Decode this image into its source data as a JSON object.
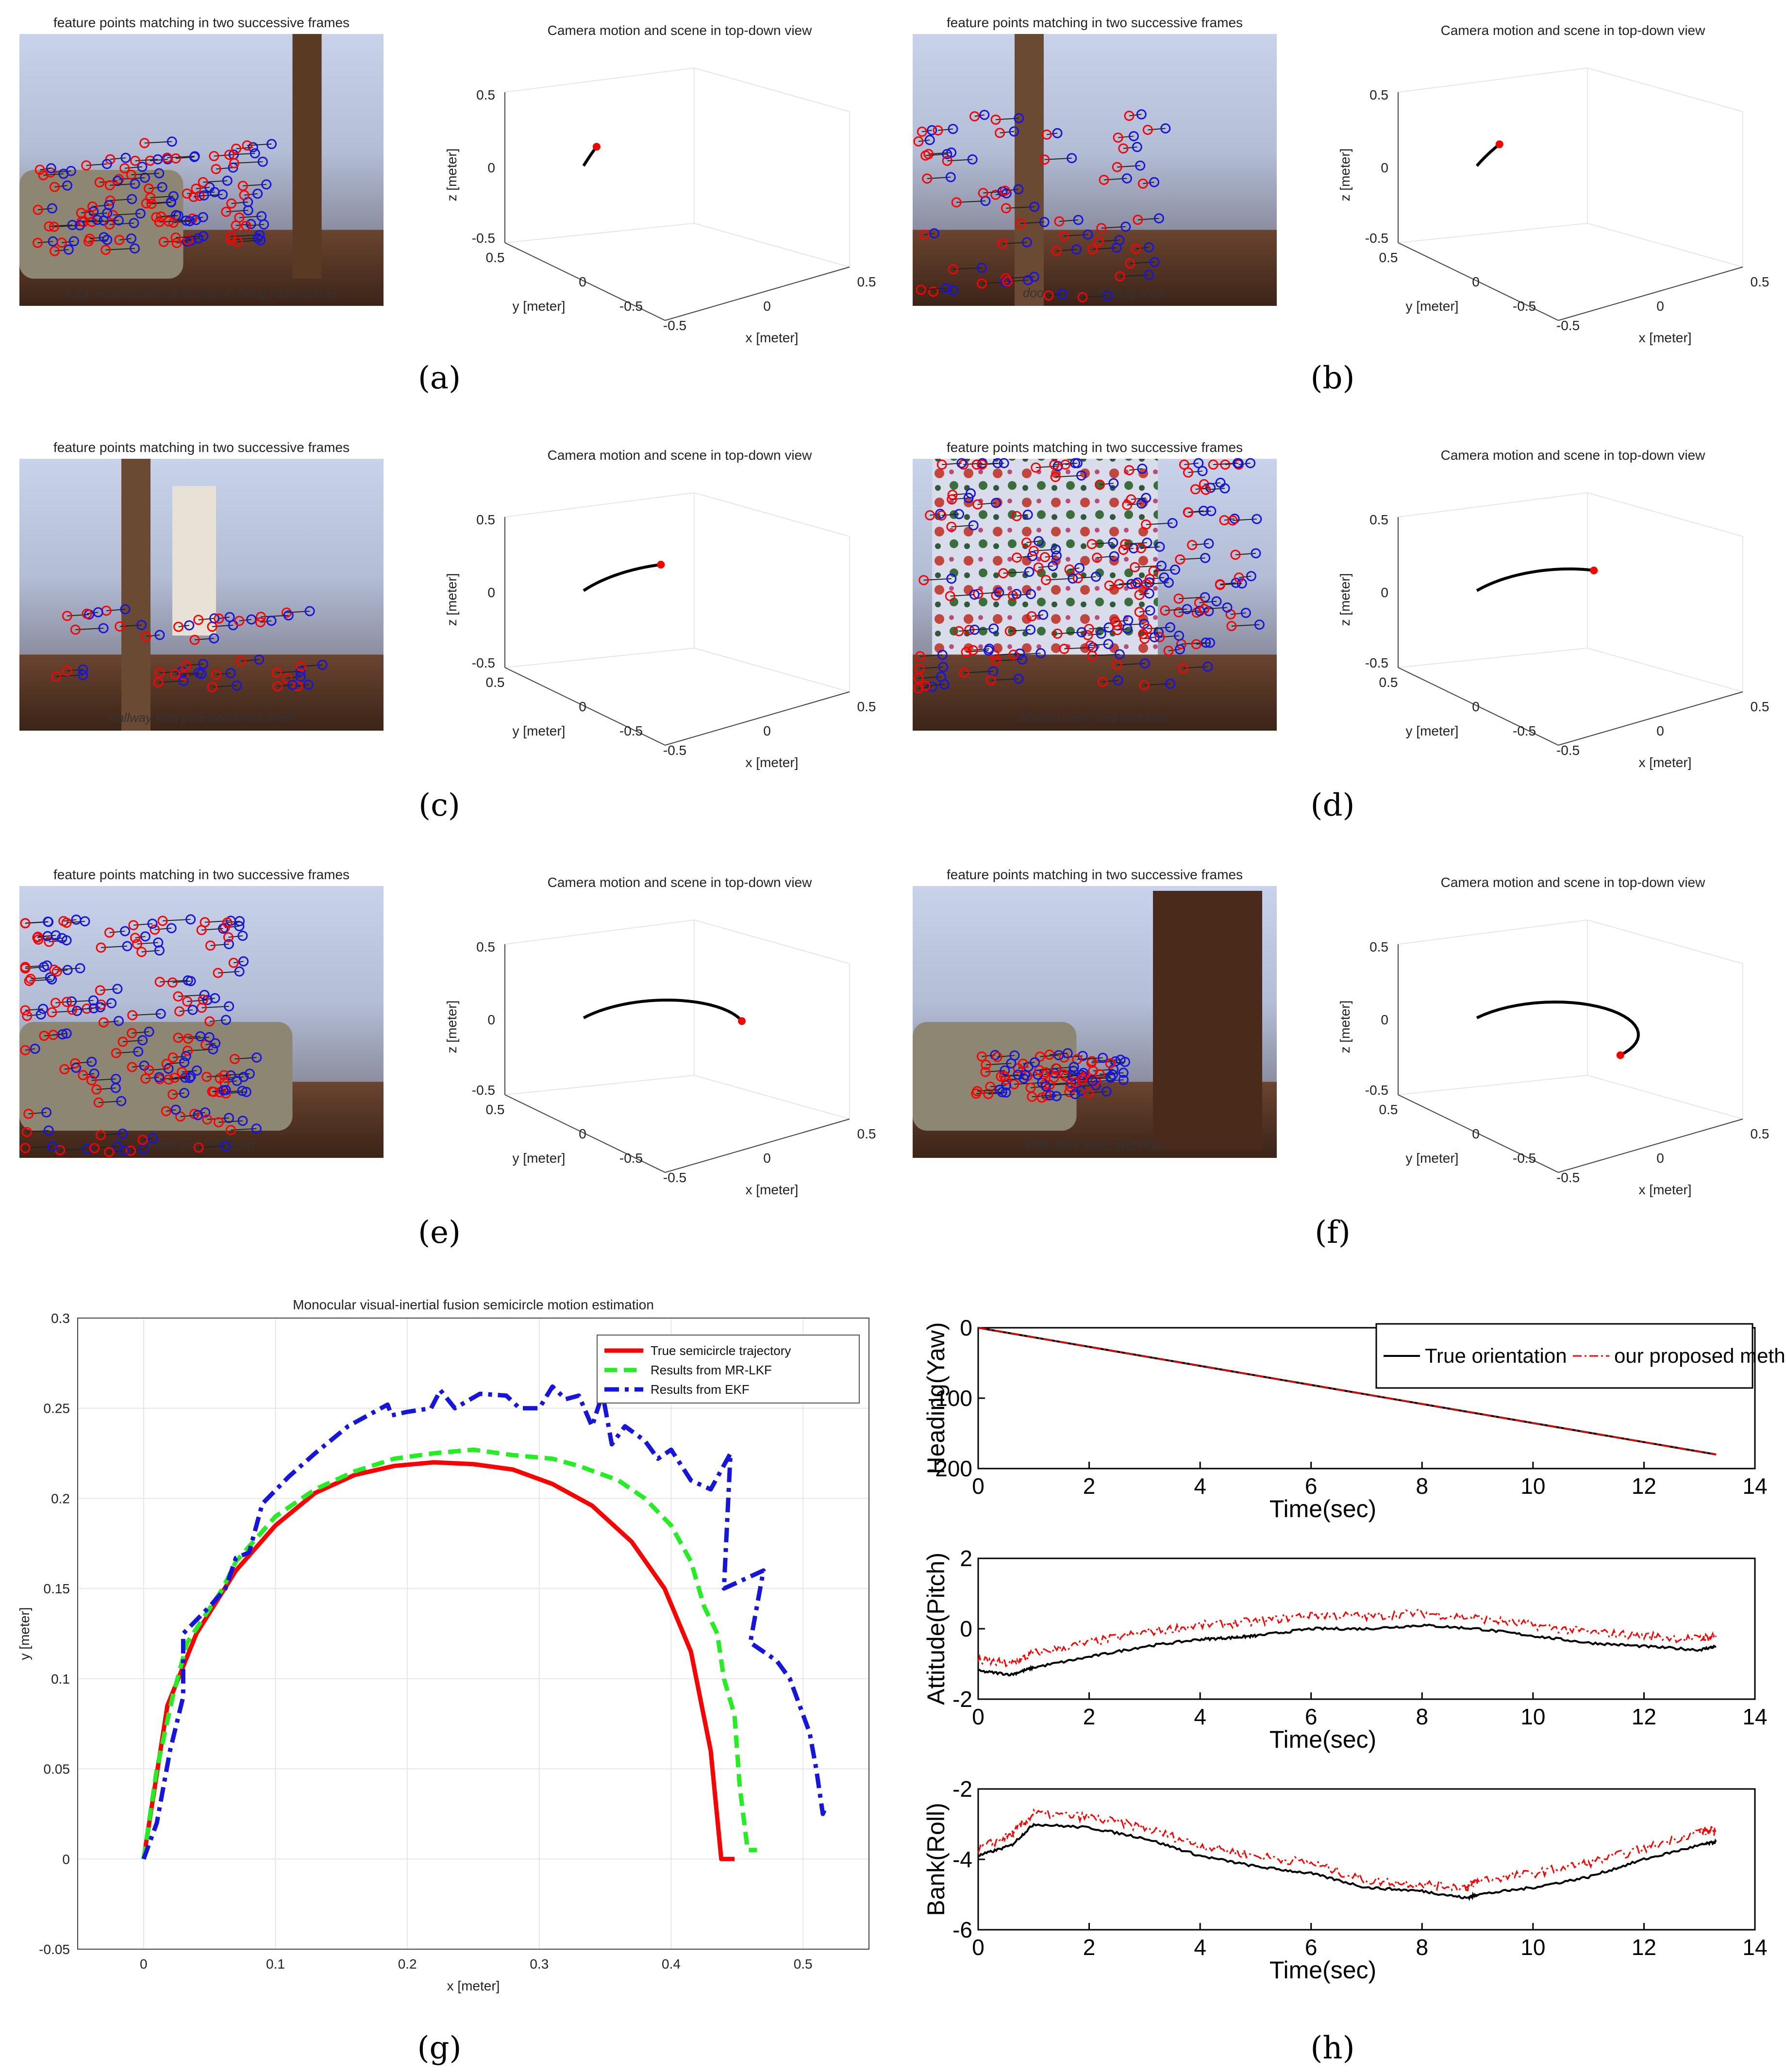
{
  "palette": {
    "red": "#ff0000",
    "green": "#22ee22",
    "blue": "#1515dd",
    "black": "#000000",
    "grid": "#e6e6e6",
    "wall": "#b9c4dc",
    "floor": "#5a3a28"
  },
  "panel_labels": [
    "(a)",
    "(b)",
    "(c)",
    "(d)",
    "(e)",
    "(f)",
    "(g)",
    "(h)"
  ],
  "frames": [
    {
      "photo_title": "feature points matching in two successive frames",
      "photo_scene": "sofa, wastebasket and chair in living room corner",
      "scene_title": "Camera motion and scene in top-down view",
      "arc_extent": 0.06
    },
    {
      "photo_title": "feature points matching in two successive frames",
      "photo_scene": "doorway and folding chair",
      "scene_title": "Camera motion and scene in top-down view",
      "arc_extent": 0.1
    },
    {
      "photo_title": "feature points matching in two successive frames",
      "photo_scene": "hallway with pole and small shelf",
      "scene_title": "Camera motion and scene in top-down view",
      "arc_extent": 0.3
    },
    {
      "photo_title": "feature points matching in two successive frames",
      "photo_scene": "floral curtain, bed and sofa",
      "scene_title": "Camera motion and scene in top-down view",
      "arc_extent": 0.45
    },
    {
      "photo_title": "feature points matching in two successive frames",
      "photo_scene": "floral sofa close-up",
      "scene_title": "Camera motion and scene in top-down view",
      "arc_extent": 0.7
    },
    {
      "photo_title": "feature points matching in two successive frames",
      "photo_scene": "sofa, floor lamp and door",
      "scene_title": "Camera motion and scene in top-down view",
      "arc_extent": 1.0
    }
  ],
  "scene3d": {
    "zlabel": "z [meter]",
    "ylabel": "y [meter]",
    "xlabel": "x [meter]",
    "z_ticks": [
      "0.5",
      "0",
      "-0.5"
    ],
    "y_ticks": [
      "0.5",
      "0",
      "-0.5"
    ],
    "x_ticks": [
      "-0.5",
      "0",
      "0.5"
    ]
  },
  "chart_data": [
    {
      "type": "line",
      "title": "Monocular visual-inertial fusion semicircle motion estimation",
      "xlabel": "x [meter]",
      "ylabel": "y [meter]",
      "xlim": [
        -0.05,
        0.55
      ],
      "ylim": [
        -0.05,
        0.3
      ],
      "x_ticks": [
        0,
        0.1,
        0.2,
        0.3,
        0.4,
        0.5
      ],
      "x_tick_labels": [
        "0",
        "0.1",
        "0.2",
        "0.3",
        "0.4",
        "0.5"
      ],
      "y_ticks": [
        -0.05,
        0,
        0.05,
        0.1,
        0.15,
        0.2,
        0.25,
        0.3
      ],
      "y_tick_labels": [
        "-0.05",
        "0",
        "0.05",
        "0.1",
        "0.15",
        "0.2",
        "0.25",
        "0.3"
      ],
      "grid": true,
      "legend_position": "top-right",
      "series": [
        {
          "name": "True semicircle trajectory",
          "color": "#ff0000",
          "style": "solid",
          "points": [
            [
              0,
              0
            ],
            [
              0.018,
              0.085
            ],
            [
              0.04,
              0.125
            ],
            [
              0.07,
              0.16
            ],
            [
              0.1,
              0.185
            ],
            [
              0.13,
              0.203
            ],
            [
              0.16,
              0.213
            ],
            [
              0.19,
              0.218
            ],
            [
              0.22,
              0.22
            ],
            [
              0.25,
              0.219
            ],
            [
              0.28,
              0.216
            ],
            [
              0.31,
              0.208
            ],
            [
              0.34,
              0.196
            ],
            [
              0.37,
              0.176
            ],
            [
              0.395,
              0.15
            ],
            [
              0.415,
              0.115
            ],
            [
              0.43,
              0.06
            ],
            [
              0.438,
              0
            ],
            [
              0.448,
              0
            ]
          ]
        },
        {
          "name": "Results from MR-LKF",
          "color": "#22ee22",
          "style": "dashed",
          "points": [
            [
              0,
              0
            ],
            [
              0.01,
              0.05
            ],
            [
              0.022,
              0.09
            ],
            [
              0.033,
              0.12
            ],
            [
              0.06,
              0.15
            ],
            [
              0.07,
              0.165
            ],
            [
              0.1,
              0.19
            ],
            [
              0.13,
              0.205
            ],
            [
              0.16,
              0.215
            ],
            [
              0.19,
              0.222
            ],
            [
              0.22,
              0.225
            ],
            [
              0.25,
              0.227
            ],
            [
              0.28,
              0.224
            ],
            [
              0.31,
              0.222
            ],
            [
              0.33,
              0.218
            ],
            [
              0.36,
              0.21
            ],
            [
              0.38,
              0.2
            ],
            [
              0.4,
              0.185
            ],
            [
              0.415,
              0.165
            ],
            [
              0.425,
              0.14
            ],
            [
              0.435,
              0.125
            ],
            [
              0.44,
              0.1
            ],
            [
              0.448,
              0.08
            ],
            [
              0.452,
              0.04
            ],
            [
              0.458,
              0.005
            ],
            [
              0.465,
              0.005
            ]
          ]
        },
        {
          "name": "Results from EKF",
          "color": "#1515dd",
          "style": "dashdot",
          "points": [
            [
              0,
              0
            ],
            [
              0.01,
              0.02
            ],
            [
              0.02,
              0.06
            ],
            [
              0.03,
              0.09
            ],
            [
              0.03,
              0.125
            ],
            [
              0.05,
              0.14
            ],
            [
              0.062,
              0.15
            ],
            [
              0.07,
              0.167
            ],
            [
              0.08,
              0.17
            ],
            [
              0.09,
              0.197
            ],
            [
              0.11,
              0.212
            ],
            [
              0.13,
              0.225
            ],
            [
              0.155,
              0.24
            ],
            [
              0.185,
              0.252
            ],
            [
              0.188,
              0.246
            ],
            [
              0.2,
              0.248
            ],
            [
              0.218,
              0.25
            ],
            [
              0.225,
              0.26
            ],
            [
              0.236,
              0.25
            ],
            [
              0.255,
              0.258
            ],
            [
              0.275,
              0.257
            ],
            [
              0.285,
              0.25
            ],
            [
              0.3,
              0.25
            ],
            [
              0.31,
              0.262
            ],
            [
              0.32,
              0.255
            ],
            [
              0.33,
              0.257
            ],
            [
              0.34,
              0.24
            ],
            [
              0.348,
              0.258
            ],
            [
              0.355,
              0.23
            ],
            [
              0.365,
              0.24
            ],
            [
              0.38,
              0.232
            ],
            [
              0.39,
              0.222
            ],
            [
              0.4,
              0.227
            ],
            [
              0.415,
              0.21
            ],
            [
              0.43,
              0.205
            ],
            [
              0.445,
              0.225
            ],
            [
              0.44,
              0.15
            ],
            [
              0.47,
              0.16
            ],
            [
              0.46,
              0.12
            ],
            [
              0.48,
              0.11
            ],
            [
              0.49,
              0.1
            ],
            [
              0.505,
              0.07
            ],
            [
              0.51,
              0.05
            ],
            [
              0.515,
              0.025
            ],
            [
              0.518,
              0.03
            ]
          ]
        }
      ]
    },
    {
      "type": "line",
      "title": "",
      "xlabel": "Time(sec)",
      "ylabel": "Heading(Yaw)",
      "xlim": [
        0,
        14
      ],
      "ylim": [
        -200,
        0
      ],
      "x_tick_labels": [
        "0",
        "2",
        "4",
        "6",
        "8",
        "10",
        "12",
        "14"
      ],
      "y_tick_labels": [
        "0",
        "-100",
        "-200"
      ],
      "legend_position": "top-right",
      "series": [
        {
          "name": "True orientation",
          "color": "#000000",
          "style": "solid",
          "points": [
            [
              0,
              0
            ],
            [
              13.3,
              -180
            ]
          ]
        },
        {
          "name": "our proposed method",
          "color": "#ff0000",
          "style": "dashdot",
          "points": [
            [
              0,
              0
            ],
            [
              13.3,
              -180
            ]
          ]
        }
      ]
    },
    {
      "type": "line",
      "title": "",
      "xlabel": "Time(sec)",
      "ylabel": "Attitude(Pitch)",
      "xlim": [
        0,
        14
      ],
      "ylim": [
        -2,
        2
      ],
      "x_tick_labels": [
        "0",
        "2",
        "4",
        "6",
        "8",
        "10",
        "12",
        "14"
      ],
      "y_tick_labels": [
        "2",
        "0",
        "-2"
      ],
      "series": [
        {
          "name": "True orientation",
          "color": "#000000",
          "style": "solid",
          "points": [
            [
              0,
              -1.2
            ],
            [
              0.6,
              -1.3
            ],
            [
              1,
              -1.1
            ],
            [
              2,
              -0.8
            ],
            [
              3,
              -0.5
            ],
            [
              4,
              -0.3
            ],
            [
              4.6,
              -0.25
            ],
            [
              5,
              -0.2
            ],
            [
              6,
              0
            ],
            [
              7,
              0
            ],
            [
              8,
              0.1
            ],
            [
              9,
              0
            ],
            [
              10,
              -0.2
            ],
            [
              11,
              -0.4
            ],
            [
              12,
              -0.5
            ],
            [
              13,
              -0.6
            ],
            [
              13.3,
              -0.5
            ]
          ]
        },
        {
          "name": "our proposed method",
          "color": "#ff0000",
          "style": "dashdot",
          "points": [
            [
              0,
              -0.9
            ],
            [
              0.6,
              -1.0
            ],
            [
              1,
              -0.7
            ],
            [
              2,
              -0.4
            ],
            [
              3,
              -0.1
            ],
            [
              4,
              0.1
            ],
            [
              5,
              0.2
            ],
            [
              6,
              0.4
            ],
            [
              7,
              0.35
            ],
            [
              8,
              0.45
            ],
            [
              9,
              0.3
            ],
            [
              10,
              0.1
            ],
            [
              11,
              -0.1
            ],
            [
              12,
              -0.2
            ],
            [
              13,
              -0.3
            ],
            [
              13.3,
              -0.2
            ]
          ]
        }
      ]
    },
    {
      "type": "line",
      "title": "",
      "xlabel": "Time(sec)",
      "ylabel": "Bank(Roll)",
      "xlim": [
        0,
        14
      ],
      "ylim": [
        -6,
        -2
      ],
      "x_tick_labels": [
        "0",
        "2",
        "4",
        "6",
        "8",
        "10",
        "12",
        "14"
      ],
      "y_tick_labels": [
        "-2",
        "-4",
        "-6"
      ],
      "series": [
        {
          "name": "True orientation",
          "color": "#000000",
          "style": "solid",
          "points": [
            [
              0,
              -3.9
            ],
            [
              0.6,
              -3.6
            ],
            [
              1,
              -3.0
            ],
            [
              2,
              -3.1
            ],
            [
              3,
              -3.4
            ],
            [
              4,
              -3.9
            ],
            [
              5,
              -4.2
            ],
            [
              6,
              -4.4
            ],
            [
              7,
              -4.8
            ],
            [
              8,
              -4.9
            ],
            [
              8.8,
              -5.1
            ],
            [
              9,
              -5.0
            ],
            [
              10,
              -4.8
            ],
            [
              11,
              -4.5
            ],
            [
              12,
              -4.0
            ],
            [
              13,
              -3.6
            ],
            [
              13.3,
              -3.5
            ]
          ]
        },
        {
          "name": "our proposed method",
          "color": "#ff0000",
          "style": "dashdot",
          "points": [
            [
              0,
              -3.7
            ],
            [
              0.6,
              -3.3
            ],
            [
              1,
              -2.7
            ],
            [
              2,
              -2.8
            ],
            [
              3,
              -3.1
            ],
            [
              4,
              -3.6
            ],
            [
              5,
              -3.9
            ],
            [
              6,
              -4.1
            ],
            [
              7,
              -4.6
            ],
            [
              8,
              -4.7
            ],
            [
              8.8,
              -4.8
            ],
            [
              9,
              -4.6
            ],
            [
              10,
              -4.4
            ],
            [
              11,
              -4.1
            ],
            [
              12,
              -3.7
            ],
            [
              13,
              -3.2
            ],
            [
              13.3,
              -3.2
            ]
          ]
        }
      ]
    }
  ]
}
